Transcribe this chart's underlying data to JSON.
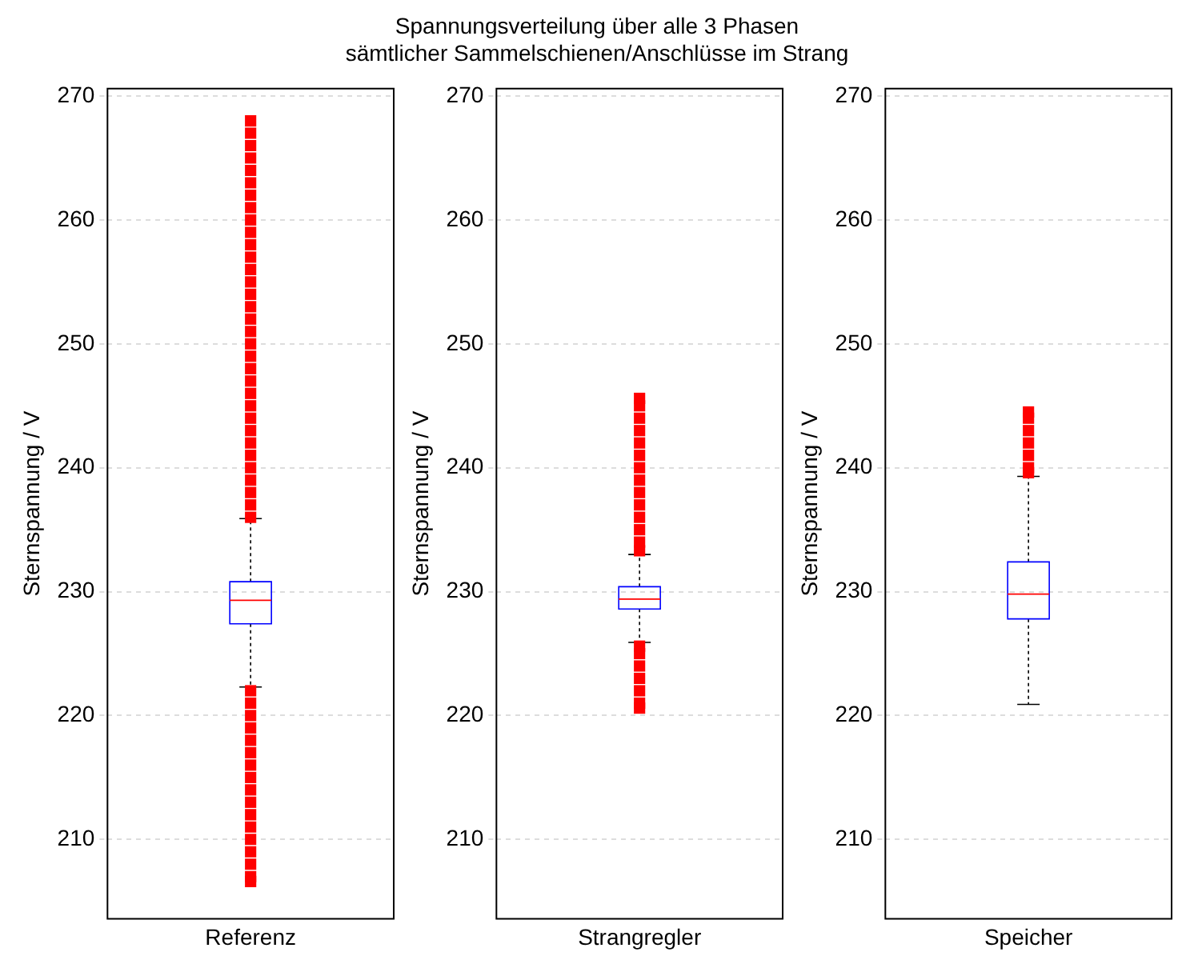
{
  "chart_data": [
    {
      "type": "other",
      "title": "Spannungsverteilung über alle 3 Phasen\nsämtlicher Sammelschienen/Anschlüsse im Strang"
    },
    {
      "type": "box",
      "categories": [
        "Referenz"
      ],
      "ylabel": "Sternspannung / V",
      "ylim": [
        203.6,
        270.6
      ],
      "yticks": [
        210,
        220,
        230,
        240,
        250,
        260,
        270
      ],
      "grid": "y",
      "boxes": [
        {
          "low": 222.3,
          "q1": 227.4,
          "median": 229.3,
          "q3": 230.8,
          "high": 235.9,
          "outliers": [
            236,
            237,
            238,
            239,
            240,
            241,
            242,
            243,
            244,
            245,
            246,
            247,
            248,
            249,
            250,
            251,
            252,
            253,
            254,
            255,
            256,
            257,
            258,
            259,
            260,
            261,
            262,
            263,
            264,
            265,
            266,
            267,
            268,
            206.6,
            207,
            208,
            209,
            210,
            211,
            212,
            213,
            214,
            215,
            216,
            217,
            218,
            219,
            220,
            221,
            222
          ]
        }
      ]
    },
    {
      "type": "box",
      "categories": [
        "Strangregler"
      ],
      "ylabel": "Sternspannung / V",
      "ylim": [
        203.6,
        270.6
      ],
      "yticks": [
        210,
        220,
        230,
        240,
        250,
        260,
        270
      ],
      "grid": "y",
      "boxes": [
        {
          "low": 225.9,
          "q1": 228.6,
          "median": 229.4,
          "q3": 230.4,
          "high": 233.0,
          "outliers": [
            233.3,
            234,
            235,
            236,
            237,
            238,
            239,
            240,
            241,
            242,
            243,
            244,
            245,
            245.6,
            220.6,
            221,
            222,
            223,
            224,
            225,
            225.6
          ]
        }
      ]
    },
    {
      "type": "box",
      "categories": [
        "Speicher"
      ],
      "ylabel": "Sternspannung / V",
      "ylim": [
        203.6,
        270.6
      ],
      "yticks": [
        210,
        220,
        230,
        240,
        250,
        260,
        270
      ],
      "grid": "y",
      "boxes": [
        {
          "low": 220.9,
          "q1": 227.8,
          "median": 229.8,
          "q3": 232.4,
          "high": 239.3,
          "outliers": [
            239.6,
            240,
            241,
            242,
            243,
            244,
            244.5
          ]
        }
      ]
    }
  ]
}
